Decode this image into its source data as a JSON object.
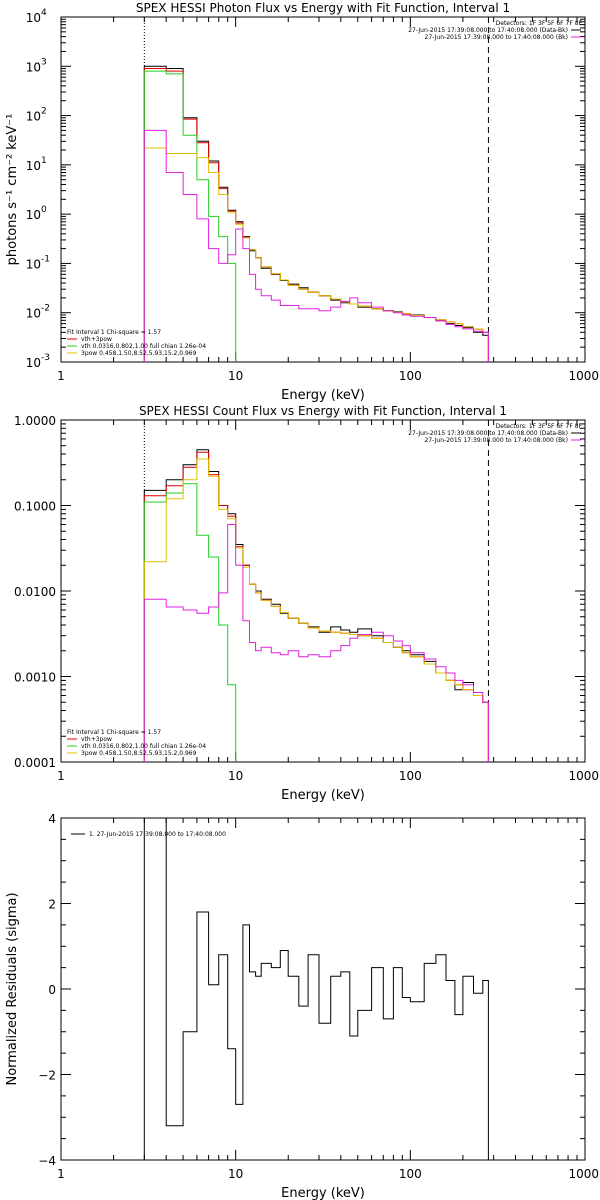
{
  "chart_data": [
    {
      "type": "line",
      "title": "SPEX HESSI Photon Flux vs Energy with Fit Function, Interval 1",
      "xlabel": "Energy (keV)",
      "ylabel": "photons s⁻¹ cm⁻² keV⁻¹",
      "xscale": "log",
      "yscale": "log",
      "xlim": [
        1,
        1000
      ],
      "ylim": [
        0.001,
        10000
      ],
      "x_ticks": [
        {
          "v": 1,
          "label": "1"
        },
        {
          "v": 10,
          "label": "10"
        },
        {
          "v": 100,
          "label": "100"
        },
        {
          "v": 1000,
          "label": "1000"
        }
      ],
      "y_ticks": [
        {
          "v": 0.001,
          "base": "10",
          "exp": "-3"
        },
        {
          "v": 0.01,
          "base": "10",
          "exp": "-2"
        },
        {
          "v": 0.1,
          "base": "10",
          "exp": "-1"
        },
        {
          "v": 1,
          "base": "10",
          "exp": "0"
        },
        {
          "v": 10,
          "base": "10",
          "exp": "1"
        },
        {
          "v": 100,
          "base": "10",
          "exp": "2"
        },
        {
          "v": 1000,
          "base": "10",
          "exp": "3"
        },
        {
          "v": 10000,
          "base": "10",
          "exp": "4"
        }
      ],
      "vlines": [
        {
          "x": 3,
          "style": "dotted",
          "color": "#000000"
        },
        {
          "x": 280,
          "style": "dashed",
          "color": "#000000"
        }
      ],
      "legend_top": [
        "Detectors: 1F 3F 5F 6F 7F 8F",
        "27-Jun-2015 17:39:08.000 to 17:40:08.000 (Data-Bk)",
        "27-Jun-2015 17:39:08.000 to 17:40:08.000 (Bk)"
      ],
      "legend_top_colors": [
        "",
        "#000000",
        "#e020e0"
      ],
      "legend_bottom": [
        "Fit Interval 1    Chi-square = 1.57",
        "vth+3pow",
        "vth 0.0316,0.802,1.00  full chian 1.26e-04",
        "3pow 0.458,1.50,8.52,5.93,15.2,0.969"
      ],
      "legend_bottom_colors": [
        "",
        "#e00000",
        "#20d020",
        "#e0c000"
      ],
      "series": [
        {
          "name": "Data-Bk",
          "color": "#000000",
          "edges": [
            3,
            4,
            5,
            6,
            7,
            8,
            9,
            10,
            11,
            12,
            13,
            14,
            16,
            18,
            20,
            23,
            26,
            30,
            35,
            40,
            45,
            50,
            60,
            70,
            80,
            90,
            100,
            120,
            140,
            160,
            180,
            200,
            230,
            260,
            280
          ],
          "values": [
            1000,
            900,
            90,
            30,
            12,
            3.5,
            1.2,
            0.7,
            0.35,
            0.18,
            0.13,
            0.08,
            0.06,
            0.045,
            0.038,
            0.032,
            0.026,
            0.022,
            0.018,
            0.016,
            0.015,
            0.013,
            0.012,
            0.011,
            0.0105,
            0.0095,
            0.009,
            0.008,
            0.007,
            0.006,
            0.0055,
            0.005,
            0.004,
            0.0035
          ]
        },
        {
          "name": "vth+3pow",
          "color": "#e00000",
          "edges": [
            3,
            4,
            5,
            6,
            7,
            8,
            9,
            10,
            11,
            12,
            13,
            14,
            16,
            18,
            20,
            23,
            26,
            30,
            35,
            40,
            45,
            50,
            60,
            70,
            80,
            90,
            100,
            120,
            140,
            160,
            180,
            200,
            230,
            260,
            280
          ],
          "values": [
            900,
            800,
            85,
            28,
            11,
            3.3,
            1.15,
            0.66,
            0.34,
            0.19,
            0.13,
            0.085,
            0.062,
            0.046,
            0.036,
            0.03,
            0.026,
            0.022,
            0.019,
            0.0165,
            0.015,
            0.0135,
            0.012,
            0.011,
            0.0102,
            0.0095,
            0.0088,
            0.008,
            0.0072,
            0.0065,
            0.006,
            0.0052,
            0.0046,
            0.004
          ]
        },
        {
          "name": "vth",
          "color": "#20d020",
          "edges": [
            3,
            4,
            5,
            6,
            7,
            8,
            9,
            10,
            11
          ],
          "values": [
            800,
            700,
            40,
            5,
            0.9,
            0.35,
            0.1,
            0.0008
          ]
        },
        {
          "name": "3pow",
          "color": "#e0c000",
          "edges": [
            3,
            4,
            5,
            6,
            7,
            8,
            9,
            10,
            11,
            12,
            13,
            14,
            16,
            18,
            20,
            23,
            26,
            30,
            35,
            40,
            45,
            50,
            60,
            70,
            80,
            90,
            100,
            120,
            140,
            160,
            180,
            200,
            230,
            260,
            280
          ],
          "values": [
            22,
            17,
            17,
            14,
            7,
            2.5,
            1.1,
            0.62,
            0.33,
            0.19,
            0.13,
            0.085,
            0.062,
            0.046,
            0.036,
            0.03,
            0.026,
            0.022,
            0.019,
            0.0165,
            0.015,
            0.0135,
            0.012,
            0.011,
            0.0102,
            0.0095,
            0.0088,
            0.008,
            0.0072,
            0.0065,
            0.006,
            0.0052,
            0.0046,
            0.004
          ]
        },
        {
          "name": "Bk",
          "color": "#e020e0",
          "edges": [
            3,
            4,
            5,
            6,
            7,
            8,
            9,
            10,
            11,
            12,
            13,
            14,
            16,
            18,
            20,
            23,
            26,
            30,
            35,
            40,
            45,
            50,
            60,
            70,
            80,
            90,
            100,
            120,
            140,
            160,
            180,
            200,
            230,
            260,
            280
          ],
          "values": [
            50,
            7,
            2.5,
            0.8,
            0.2,
            0.1,
            0.15,
            0.5,
            0.2,
            0.06,
            0.03,
            0.022,
            0.018,
            0.014,
            0.014,
            0.012,
            0.012,
            0.011,
            0.013,
            0.017,
            0.02,
            0.016,
            0.013,
            0.011,
            0.01,
            0.009,
            0.0085,
            0.008,
            0.0068,
            0.0058,
            0.0052,
            0.0047,
            0.0042,
            0.004
          ]
        }
      ]
    },
    {
      "type": "line",
      "title": "SPEX HESSI Count Flux vs Energy with Fit Function, Interval 1",
      "xlabel": "Energy (keV)",
      "ylabel": "",
      "xscale": "log",
      "yscale": "log",
      "xlim": [
        1,
        1000
      ],
      "ylim": [
        0.0001,
        1
      ],
      "x_ticks": [
        {
          "v": 1,
          "label": "1"
        },
        {
          "v": 10,
          "label": "10"
        },
        {
          "v": 100,
          "label": "100"
        },
        {
          "v": 1000,
          "label": "1000"
        }
      ],
      "y_ticks": [
        {
          "v": 0.0001,
          "label": "0.0001"
        },
        {
          "v": 0.001,
          "label": "0.0010"
        },
        {
          "v": 0.01,
          "label": "0.0100"
        },
        {
          "v": 0.1,
          "label": "0.1000"
        },
        {
          "v": 1,
          "label": "1.0000"
        }
      ],
      "vlines": [
        {
          "x": 3,
          "style": "dotted",
          "color": "#000000"
        },
        {
          "x": 280,
          "style": "dashed",
          "color": "#000000"
        }
      ],
      "legend_top": [
        "Detectors: 1F 3F 5F 6F 7F 8F",
        "27-Jun-2015 17:39:08.000 to 17:40:08.000 (Data-Bk)",
        "27-Jun-2015 17:39:08.000 to 17:40:08.000 (Bk)"
      ],
      "legend_top_colors": [
        "",
        "#000000",
        "#e020e0"
      ],
      "legend_bottom": [
        "Fit Interval 1    Chi-square = 1.57",
        "vth+3pow",
        "vth 0.0316,0.802,1.00  full chian 1.26e-04",
        "3pow 0.458,1.50,8.52,5.93,15.2,0.969"
      ],
      "legend_bottom_colors": [
        "",
        "#e00000",
        "#20d020",
        "#e0c000"
      ],
      "series": [
        {
          "name": "Data-Bk",
          "color": "#000000",
          "edges": [
            3,
            4,
            5,
            6,
            7,
            8,
            9,
            10,
            11,
            12,
            13,
            14,
            16,
            18,
            20,
            23,
            26,
            30,
            35,
            40,
            45,
            50,
            60,
            70,
            80,
            90,
            100,
            120,
            140,
            160,
            180,
            200,
            230,
            260,
            280
          ],
          "values": [
            0.15,
            0.2,
            0.3,
            0.45,
            0.25,
            0.1,
            0.08,
            0.035,
            0.02,
            0.012,
            0.01,
            0.008,
            0.007,
            0.0055,
            0.0048,
            0.0042,
            0.0038,
            0.0033,
            0.0038,
            0.0035,
            0.0033,
            0.0036,
            0.003,
            0.0025,
            0.0022,
            0.002,
            0.0018,
            0.0015,
            0.0011,
            0.0009,
            0.0007,
            0.00085,
            0.0006,
            0.0005
          ]
        },
        {
          "name": "vth+3pow",
          "color": "#e00000",
          "edges": [
            3,
            4,
            5,
            6,
            7,
            8,
            9,
            10,
            11,
            12,
            13,
            14,
            16,
            18,
            20,
            23,
            26,
            30,
            35,
            40,
            45,
            50,
            60,
            70,
            80,
            90,
            100,
            120,
            140,
            160,
            180,
            200,
            230,
            260,
            280
          ],
          "values": [
            0.13,
            0.17,
            0.28,
            0.42,
            0.23,
            0.1,
            0.075,
            0.033,
            0.02,
            0.012,
            0.0095,
            0.0078,
            0.0066,
            0.0056,
            0.0048,
            0.0042,
            0.0037,
            0.0034,
            0.0033,
            0.0032,
            0.0031,
            0.003,
            0.0028,
            0.0025,
            0.0022,
            0.0019,
            0.0017,
            0.0014,
            0.0011,
            0.0009,
            0.0008,
            0.0007,
            0.0006,
            0.0005
          ]
        },
        {
          "name": "vth",
          "color": "#20d020",
          "edges": [
            3,
            4,
            5,
            6,
            7,
            8,
            9,
            10,
            11
          ],
          "values": [
            0.11,
            0.14,
            0.18,
            0.045,
            0.025,
            0.004,
            0.0008,
            5e-05
          ]
        },
        {
          "name": "3pow",
          "color": "#e0c000",
          "edges": [
            3,
            4,
            5,
            6,
            7,
            8,
            9,
            10,
            11,
            12,
            13,
            14,
            16,
            18,
            20,
            23,
            26,
            30,
            35,
            40,
            45,
            50,
            60,
            70,
            80,
            90,
            100,
            120,
            140,
            160,
            180,
            200,
            230,
            260,
            280
          ],
          "values": [
            0.022,
            0.12,
            0.2,
            0.35,
            0.22,
            0.09,
            0.07,
            0.032,
            0.019,
            0.012,
            0.0095,
            0.0078,
            0.0066,
            0.0056,
            0.0048,
            0.0042,
            0.0037,
            0.0034,
            0.0033,
            0.0032,
            0.0031,
            0.003,
            0.0028,
            0.0025,
            0.0022,
            0.0019,
            0.0017,
            0.0014,
            0.0011,
            0.0009,
            0.0008,
            0.0007,
            0.0006,
            0.0005
          ]
        },
        {
          "name": "Bk",
          "color": "#e020e0",
          "edges": [
            3,
            4,
            5,
            6,
            7,
            8,
            9,
            10,
            11,
            12,
            13,
            14,
            16,
            18,
            20,
            23,
            26,
            30,
            35,
            40,
            45,
            50,
            60,
            70,
            80,
            90,
            100,
            120,
            140,
            160,
            180,
            200,
            230,
            260,
            280
          ],
          "values": [
            0.008,
            0.0065,
            0.006,
            0.0055,
            0.0065,
            0.0095,
            0.06,
            0.02,
            0.0045,
            0.0025,
            0.002,
            0.0022,
            0.0019,
            0.0018,
            0.002,
            0.0017,
            0.0018,
            0.0017,
            0.002,
            0.0023,
            0.0028,
            0.0031,
            0.0033,
            0.003,
            0.0026,
            0.0023,
            0.0019,
            0.0016,
            0.0013,
            0.0011,
            0.0009,
            0.0008,
            0.00065,
            0.0005
          ]
        }
      ]
    },
    {
      "type": "line",
      "title": "",
      "xlabel": "Energy (keV)",
      "ylabel": "Normalized Residuals (sigma)",
      "xscale": "log",
      "yscale": "linear",
      "xlim": [
        1,
        1000
      ],
      "ylim": [
        -4,
        4
      ],
      "x_ticks": [
        {
          "v": 1,
          "label": "1"
        },
        {
          "v": 10,
          "label": "10"
        },
        {
          "v": 100,
          "label": "100"
        },
        {
          "v": 1000,
          "label": "1000"
        }
      ],
      "y_ticks": [
        {
          "v": -4,
          "label": "−4"
        },
        {
          "v": -2,
          "label": "−2"
        },
        {
          "v": 0,
          "label": "0"
        },
        {
          "v": 2,
          "label": "2"
        },
        {
          "v": 4,
          "label": "4"
        }
      ],
      "vlines": [],
      "legend_top": [
        "1. 27-Jun-2015 17:39:08.000 to 17:40:08.000"
      ],
      "legend_top_colors": [
        "#000000"
      ],
      "legend_bottom": [],
      "legend_bottom_colors": [],
      "series": [
        {
          "name": "1. 27-Jun-2015 17:39:08.000 to 17:40:08.000",
          "color": "#000000",
          "edges": [
            3,
            4,
            5,
            6,
            7,
            8,
            9,
            10,
            11,
            12,
            13,
            14,
            16,
            18,
            20,
            23,
            26,
            30,
            35,
            40,
            45,
            50,
            60,
            70,
            80,
            90,
            100,
            120,
            140,
            160,
            180,
            200,
            230,
            260,
            280
          ],
          "values": [
            4,
            -3.2,
            -1,
            1.8,
            0.1,
            0.8,
            -1.4,
            -2.7,
            1.5,
            0.4,
            0.3,
            0.6,
            0.5,
            0.9,
            0.3,
            -0.4,
            0.8,
            -0.8,
            0.3,
            0.4,
            -1.1,
            -0.5,
            0.5,
            -0.7,
            0.5,
            -0.2,
            -0.3,
            0.6,
            0.8,
            0.2,
            -0.6,
            0.3,
            -0.1,
            0.2
          ]
        }
      ]
    }
  ]
}
